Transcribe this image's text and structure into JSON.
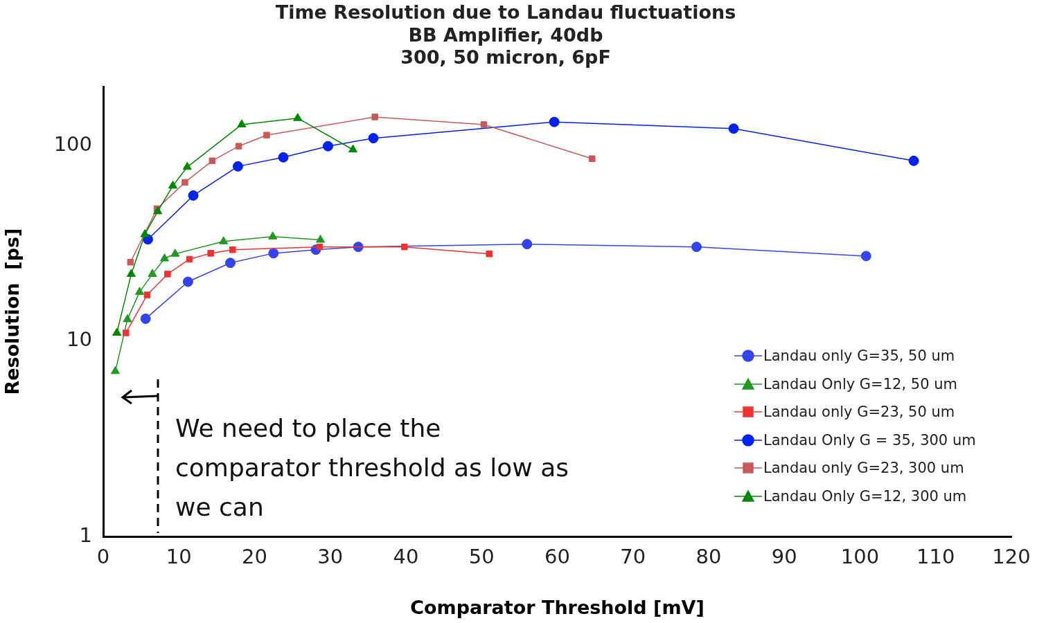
{
  "chart_data": {
    "type": "line",
    "title": "Time Resolution due to Landau fluctuations",
    "subtitle": "BB Amplifier, 40db\n300, 50 micron, 6pF",
    "xlabel": "Comparator Threshold [mV]",
    "ylabel": "Resolution  [ps]",
    "xlim": [
      0,
      120
    ],
    "xticks": [
      0,
      10,
      20,
      30,
      40,
      50,
      60,
      70,
      80,
      90,
      100,
      110,
      120
    ],
    "ylim": [
      1,
      200
    ],
    "yticks": [
      1,
      10,
      100
    ],
    "log": true,
    "grid": false,
    "legend": "right",
    "annotations": [
      "We need to place the comparator threshold as low as we can"
    ],
    "series": [
      {
        "name": "Landau only G=35, 50 um",
        "color": "#3344ee",
        "marker": "circle",
        "x": [
          5.6,
          11.2,
          16.8,
          22.5,
          28.1,
          33.7,
          56.0,
          78.4,
          100.8
        ],
        "values": [
          13.0,
          20.1,
          25.1,
          28.1,
          29.3,
          30.3,
          31.3,
          30.3,
          27.2
        ]
      },
      {
        "name": "Landau Only G=12, 50 um",
        "color": "#229922",
        "marker": "triangle",
        "x": [
          1.6,
          3.2,
          4.8,
          6.5,
          8.1,
          9.5,
          15.9,
          22.4,
          28.7
        ],
        "values": [
          7.0,
          12.9,
          17.8,
          22.0,
          26.4,
          27.9,
          32.3,
          34.2,
          32.9
        ]
      },
      {
        "name": "Landau only G=23, 50 um",
        "color": "#ee3333",
        "marker": "square",
        "x": [
          3.0,
          5.8,
          8.5,
          11.4,
          14.2,
          17.1,
          28.6,
          39.8,
          51.0
        ],
        "values": [
          11.0,
          17.2,
          22.0,
          26.2,
          28.1,
          29.3,
          30.3,
          30.3,
          27.9
        ]
      },
      {
        "name": "Landau Only G = 35, 300 um",
        "color": "#0022ee",
        "marker": "circle",
        "x": [
          5.9,
          11.9,
          17.8,
          23.8,
          29.7,
          35.7,
          59.6,
          83.3,
          107.1
        ],
        "values": [
          33.1,
          55.5,
          78.2,
          87.0,
          99.2,
          109,
          132,
          122,
          83.5
        ]
      },
      {
        "name": "Landau only G=23, 300 um",
        "color": "#c85a5a",
        "marker": "square",
        "x": [
          3.6,
          7.1,
          10.8,
          14.4,
          17.9,
          21.6,
          35.9,
          50.3,
          64.6
        ],
        "values": [
          25.3,
          47.5,
          64.8,
          83.5,
          99.2,
          113,
          140,
          128,
          85.6
        ]
      },
      {
        "name": "Landau Only G=12, 300 um",
        "color": "#008800",
        "marker": "triangle",
        "x": [
          1.8,
          3.7,
          5.5,
          7.2,
          9.2,
          11.1,
          18.3,
          25.7,
          33.0
        ],
        "values": [
          11.0,
          22.0,
          35.1,
          46.0,
          62.2,
          77.6,
          128,
          138,
          95.2
        ]
      }
    ]
  }
}
